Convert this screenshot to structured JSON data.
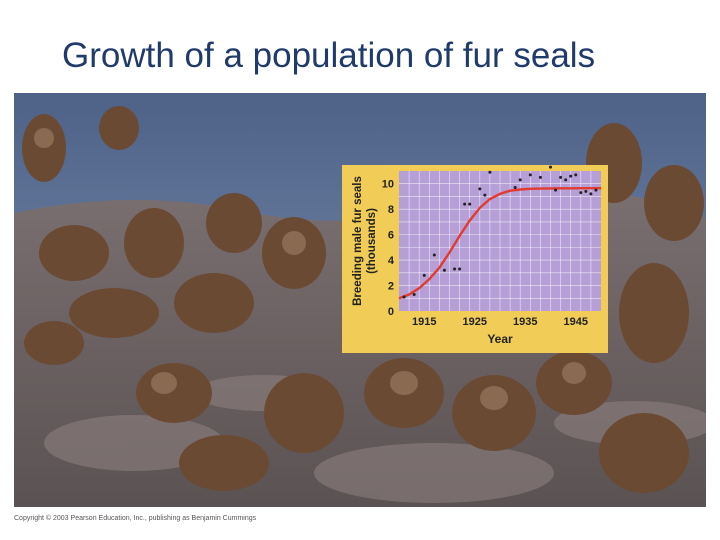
{
  "slide": {
    "title": "Growth of a population of fur seals",
    "credit": "Copyright © 2003 Pearson Education, Inc., publishing as Benjamin Cummings"
  },
  "colors": {
    "title": "#1f3a6b",
    "panel": "#f1cd58",
    "plot_bg": "#b59fd6",
    "grid": "#ffffff",
    "curve": "#e23a2e",
    "points": "#222222",
    "water": "#5c6f92",
    "rock": "#6e6664",
    "seal": "#6b4a34"
  },
  "chart_data": {
    "type": "scatter",
    "title": "",
    "xlabel": "Year",
    "ylabel": "Breeding male fur seals (thousands)",
    "xlim": [
      1910,
      1950
    ],
    "ylim": [
      0,
      11
    ],
    "x_ticks": [
      "1915",
      "1925",
      "1935",
      "1945"
    ],
    "x_tick_values": [
      1915,
      1925,
      1935,
      1945
    ],
    "y_ticks": [
      "0",
      "2",
      "4",
      "6",
      "8",
      "10"
    ],
    "y_tick_values": [
      0,
      2,
      4,
      6,
      8,
      10
    ],
    "grid": true,
    "series": [
      {
        "kind": "points",
        "x": [
          1911,
          1913,
          1915,
          1917,
          1919,
          1921,
          1922,
          1923,
          1924,
          1926,
          1927,
          1928,
          1933,
          1934,
          1936,
          1938,
          1940,
          1941,
          1942,
          1943,
          1944,
          1945,
          1946,
          1947,
          1948,
          1949
        ],
        "y": [
          1.1,
          1.3,
          2.8,
          4.4,
          3.2,
          3.3,
          3.3,
          8.4,
          8.4,
          9.6,
          9.1,
          10.9,
          9.7,
          10.3,
          10.7,
          10.5,
          11.3,
          9.5,
          10.5,
          10.3,
          10.6,
          10.7,
          9.3,
          9.4,
          9.2,
          9.5
        ]
      },
      {
        "kind": "curve",
        "x": [
          1910,
          1912,
          1914,
          1916,
          1918,
          1920,
          1922,
          1924,
          1926,
          1928,
          1930,
          1932,
          1934,
          1936,
          1938,
          1940,
          1942,
          1944,
          1946,
          1948,
          1950
        ],
        "y": [
          1.0,
          1.3,
          1.8,
          2.5,
          3.4,
          4.6,
          5.9,
          7.1,
          8.1,
          8.8,
          9.2,
          9.45,
          9.55,
          9.6,
          9.62,
          9.63,
          9.64,
          9.64,
          9.65,
          9.65,
          9.65
        ]
      }
    ]
  }
}
